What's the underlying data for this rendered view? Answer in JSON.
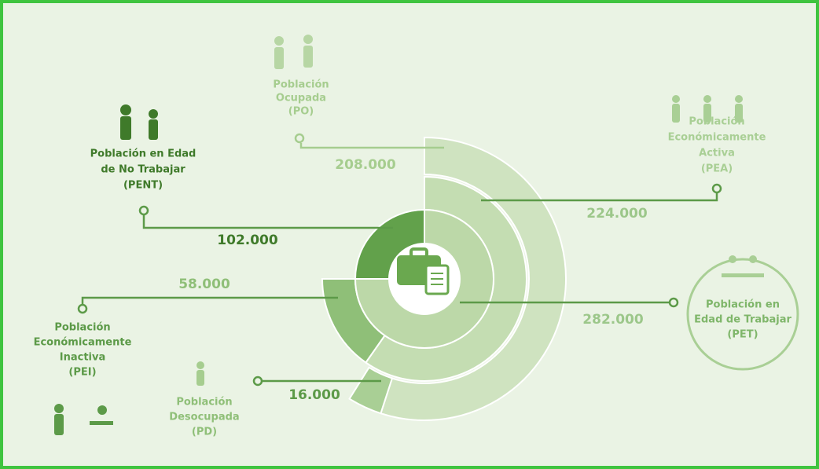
{
  "nodes": [
    {
      "label": [
        "Población",
        "Ocupada",
        "(PO)"
      ],
      "value": "208.000"
    },
    {
      "label": [
        "Población",
        "Económicamente",
        "Activa",
        "(PEA)"
      ],
      "value": "224.000"
    },
    {
      "label": [
        "Población en Edad",
        "de No Trabajar",
        "(PENT)"
      ],
      "value": "102.000"
    },
    {
      "label": [
        "Población",
        "Económicamente",
        "Inactiva",
        "(PEI)"
      ],
      "value": "58.000"
    },
    {
      "label": [
        "Población en",
        "Edad de Trabajar",
        "(PET)"
      ],
      "value": "282.000"
    },
    {
      "label": [
        "Población",
        "Desocupada",
        "(PD)"
      ],
      "value": "16.000"
    }
  ]
}
